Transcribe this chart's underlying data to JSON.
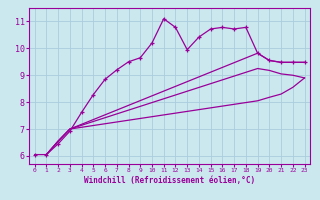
{
  "xlabel": "Windchill (Refroidissement éolien,°C)",
  "xlim": [
    -0.5,
    23.5
  ],
  "ylim": [
    5.7,
    11.5
  ],
  "xticks": [
    0,
    1,
    2,
    3,
    4,
    5,
    6,
    7,
    8,
    9,
    10,
    11,
    12,
    13,
    14,
    15,
    16,
    17,
    18,
    19,
    20,
    21,
    22,
    23
  ],
  "yticks": [
    6,
    7,
    8,
    9,
    10,
    11
  ],
  "bg_color": "#cce8ef",
  "grid_color": "#aaccdd",
  "line_color": "#990099",
  "curve1_x": [
    0,
    1,
    2,
    3,
    4,
    5,
    6,
    7,
    8,
    9,
    10,
    11,
    12,
    13,
    14,
    15,
    16,
    17,
    18,
    19,
    20,
    21,
    22,
    23
  ],
  "curve1_y": [
    6.05,
    6.05,
    6.45,
    6.92,
    7.62,
    8.28,
    8.85,
    9.2,
    9.5,
    9.65,
    10.2,
    11.1,
    10.78,
    9.95,
    10.42,
    10.72,
    10.78,
    10.72,
    10.78,
    9.82,
    9.55,
    9.48,
    9.48,
    9.48
  ],
  "curve2_x": [
    1,
    2,
    3,
    19,
    20,
    21,
    22,
    23
  ],
  "curve2_y": [
    6.05,
    6.55,
    7.0,
    9.82,
    9.55,
    9.48,
    9.48,
    9.48
  ],
  "curve3_x": [
    1,
    2,
    3,
    19,
    20,
    21,
    22,
    23
  ],
  "curve3_y": [
    6.05,
    6.55,
    7.0,
    9.25,
    9.18,
    9.05,
    9.0,
    8.9
  ],
  "curve4_x": [
    1,
    2,
    3,
    19,
    20,
    21,
    22,
    23
  ],
  "curve4_y": [
    6.05,
    6.55,
    7.0,
    8.05,
    8.18,
    8.3,
    8.55,
    8.9
  ]
}
